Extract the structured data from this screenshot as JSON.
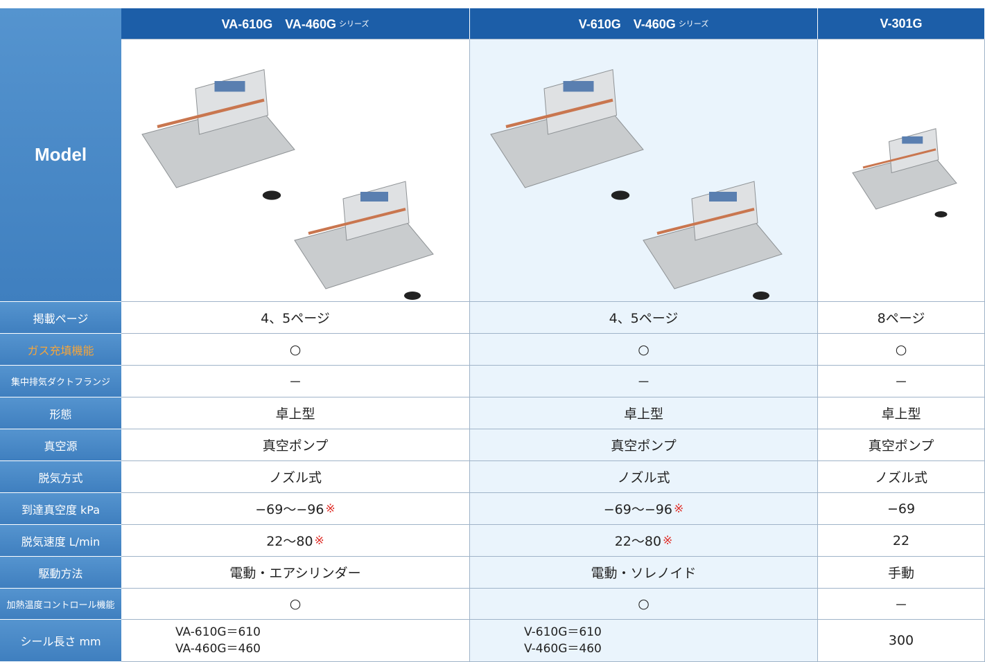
{
  "table": {
    "corner": "Model",
    "columns": [
      {
        "name": "VA-610G　VA-460G",
        "suffix": "シリーズ"
      },
      {
        "name": "V-610G　V-460G",
        "suffix": "シリーズ"
      },
      {
        "name": "V-301G"
      }
    ],
    "rows": [
      {
        "label": "掲載ページ",
        "cells": [
          {
            "text": "4、5ページ"
          },
          {
            "text": "4、5ページ"
          },
          {
            "text": "8ページ"
          }
        ]
      },
      {
        "label": "ガス充填機能",
        "highlight": true,
        "cells": [
          {
            "text": "○"
          },
          {
            "text": "○"
          },
          {
            "text": "○"
          }
        ]
      },
      {
        "label": "集中排気ダクトフランジ",
        "cells": [
          {
            "text": "－"
          },
          {
            "text": "－"
          },
          {
            "text": "－"
          }
        ]
      },
      {
        "label": "形態",
        "cells": [
          {
            "text": "卓上型"
          },
          {
            "text": "卓上型"
          },
          {
            "text": "卓上型"
          }
        ]
      },
      {
        "label": "真空源",
        "cells": [
          {
            "text": "真空ポンプ"
          },
          {
            "text": "真空ポンプ"
          },
          {
            "text": "真空ポンプ"
          }
        ]
      },
      {
        "label": "脱気方式",
        "cells": [
          {
            "text": "ノズル式"
          },
          {
            "text": "ノズル式"
          },
          {
            "text": "ノズル式"
          }
        ]
      },
      {
        "label": "到達真空度 kPa",
        "cells": [
          {
            "text": "−69～−96",
            "mark": "※"
          },
          {
            "text": "−69～−96",
            "mark": "※"
          },
          {
            "text": "−69"
          }
        ]
      },
      {
        "label": "脱気速度 L/min",
        "cells": [
          {
            "text": "22～80",
            "mark": "※"
          },
          {
            "text": "22～80",
            "mark": "※"
          },
          {
            "text": "22"
          }
        ]
      },
      {
        "label": "駆動方法",
        "cells": [
          {
            "text": "電動・エアシリンダー"
          },
          {
            "text": "電動・ソレノイド"
          },
          {
            "text": "手動"
          }
        ]
      },
      {
        "label": "加熱温度コントロール機能",
        "cells": [
          {
            "text": "○"
          },
          {
            "text": "○"
          },
          {
            "text": "－"
          }
        ]
      },
      {
        "label": "シール長さ mm",
        "cells": [
          {
            "lines": [
              "VA-610G＝610",
              "VA-460G＝460"
            ]
          },
          {
            "lines": [
              "V-610G＝610",
              "V-460G＝460"
            ]
          },
          {
            "text": "300"
          }
        ]
      }
    ]
  }
}
